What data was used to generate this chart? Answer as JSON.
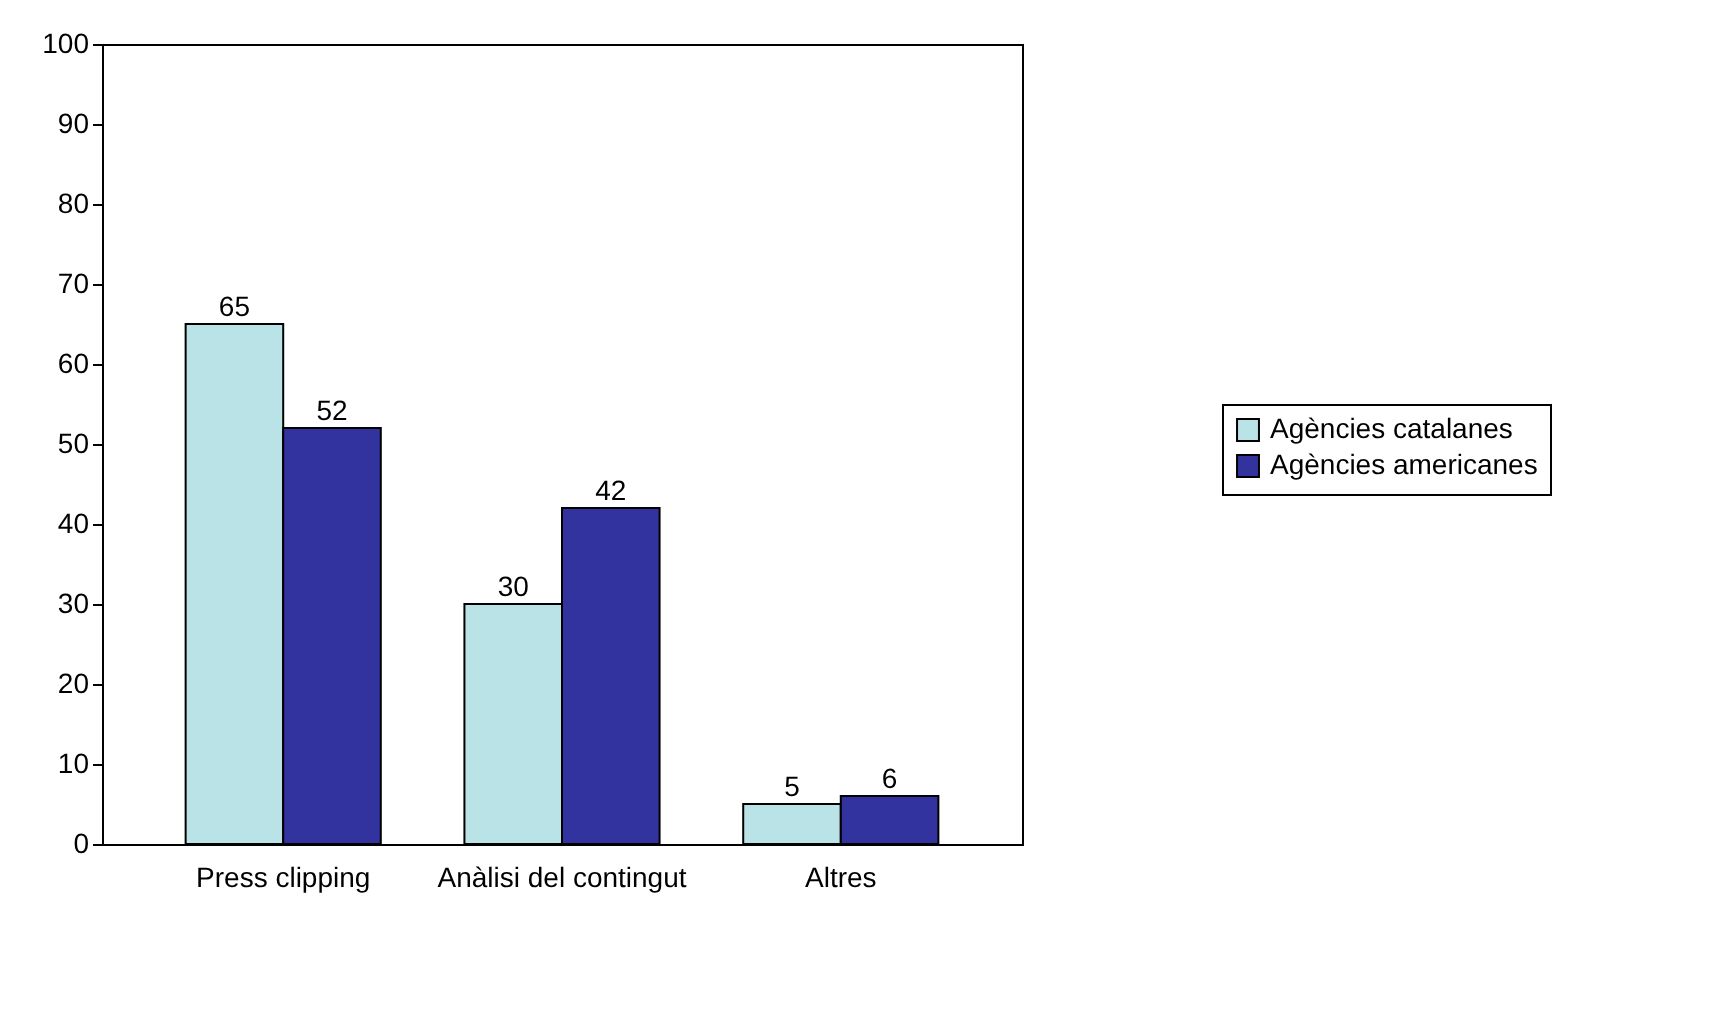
{
  "chart_data": {
    "type": "bar",
    "categories": [
      "Press clipping",
      "Anàlisi del contingut",
      "Altres"
    ],
    "series": [
      {
        "name": "Agències catalanes",
        "color": "#b9e3e6",
        "values": [
          65,
          30,
          5
        ]
      },
      {
        "name": "Agències americanes",
        "color": "#3333a0",
        "values": [
          52,
          42,
          6
        ]
      }
    ],
    "ylim": [
      0,
      100
    ],
    "yticks": [
      0,
      10,
      20,
      30,
      40,
      50,
      60,
      70,
      80,
      90,
      100
    ],
    "grid": false,
    "legend": "right",
    "data_labels": true
  }
}
